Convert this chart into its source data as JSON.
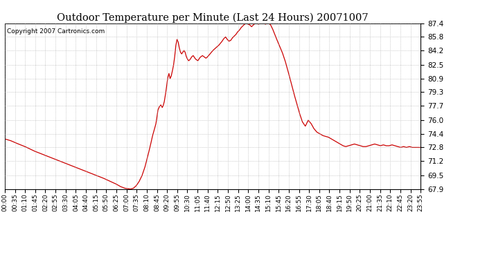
{
  "title": "Outdoor Temperature per Minute (Last 24 Hours) 20071007",
  "copyright": "Copyright 2007 Cartronics.com",
  "line_color": "#cc0000",
  "background_color": "#ffffff",
  "grid_color": "#aaaaaa",
  "ylim": [
    67.9,
    87.4
  ],
  "yticks": [
    67.9,
    69.5,
    71.2,
    72.8,
    74.4,
    76.0,
    77.7,
    79.3,
    80.9,
    82.5,
    84.2,
    85.8,
    87.4
  ],
  "xtick_labels": [
    "00:00",
    "00:35",
    "01:10",
    "01:45",
    "02:20",
    "02:55",
    "03:30",
    "04:05",
    "04:40",
    "05:15",
    "05:50",
    "06:25",
    "07:00",
    "07:35",
    "08:10",
    "08:45",
    "09:20",
    "09:55",
    "10:30",
    "11:05",
    "11:40",
    "12:15",
    "12:50",
    "13:25",
    "14:00",
    "14:35",
    "15:10",
    "15:45",
    "16:20",
    "16:55",
    "17:30",
    "18:05",
    "18:40",
    "19:15",
    "19:50",
    "20:25",
    "21:00",
    "21:35",
    "22:10",
    "22:45",
    "23:20",
    "23:55"
  ],
  "keypoints": [
    [
      0,
      73.8
    ],
    [
      20,
      73.6
    ],
    [
      40,
      73.3
    ],
    [
      70,
      72.9
    ],
    [
      100,
      72.4
    ],
    [
      130,
      72.0
    ],
    [
      160,
      71.6
    ],
    [
      190,
      71.2
    ],
    [
      220,
      70.8
    ],
    [
      250,
      70.4
    ],
    [
      280,
      70.0
    ],
    [
      310,
      69.6
    ],
    [
      340,
      69.2
    ],
    [
      365,
      68.8
    ],
    [
      385,
      68.5
    ],
    [
      400,
      68.2
    ],
    [
      415,
      68.0
    ],
    [
      425,
      67.95
    ],
    [
      435,
      67.9
    ],
    [
      445,
      68.0
    ],
    [
      455,
      68.3
    ],
    [
      465,
      68.8
    ],
    [
      475,
      69.5
    ],
    [
      485,
      70.5
    ],
    [
      495,
      71.8
    ],
    [
      505,
      73.2
    ],
    [
      510,
      74.0
    ],
    [
      515,
      74.6
    ],
    [
      520,
      75.2
    ],
    [
      523,
      75.6
    ],
    [
      525,
      76.0
    ],
    [
      527,
      76.5
    ],
    [
      530,
      77.2
    ],
    [
      535,
      77.6
    ],
    [
      540,
      77.8
    ],
    [
      545,
      77.5
    ],
    [
      548,
      77.7
    ],
    [
      552,
      78.2
    ],
    [
      556,
      79.0
    ],
    [
      560,
      80.0
    ],
    [
      564,
      81.0
    ],
    [
      568,
      81.5
    ],
    [
      572,
      80.9
    ],
    [
      576,
      81.2
    ],
    [
      580,
      81.8
    ],
    [
      584,
      82.5
    ],
    [
      588,
      83.5
    ],
    [
      592,
      84.8
    ],
    [
      596,
      85.5
    ],
    [
      600,
      85.2
    ],
    [
      604,
      84.5
    ],
    [
      608,
      84.0
    ],
    [
      612,
      83.8
    ],
    [
      616,
      84.0
    ],
    [
      620,
      84.2
    ],
    [
      624,
      84.0
    ],
    [
      628,
      83.5
    ],
    [
      632,
      83.2
    ],
    [
      636,
      83.0
    ],
    [
      640,
      83.1
    ],
    [
      644,
      83.3
    ],
    [
      648,
      83.5
    ],
    [
      652,
      83.6
    ],
    [
      656,
      83.4
    ],
    [
      660,
      83.2
    ],
    [
      664,
      83.1
    ],
    [
      668,
      83.0
    ],
    [
      672,
      83.2
    ],
    [
      676,
      83.4
    ],
    [
      680,
      83.5
    ],
    [
      684,
      83.6
    ],
    [
      688,
      83.5
    ],
    [
      692,
      83.4
    ],
    [
      696,
      83.3
    ],
    [
      700,
      83.4
    ],
    [
      705,
      83.6
    ],
    [
      710,
      83.8
    ],
    [
      715,
      84.0
    ],
    [
      720,
      84.2
    ],
    [
      730,
      84.5
    ],
    [
      740,
      84.8
    ],
    [
      750,
      85.2
    ],
    [
      758,
      85.6
    ],
    [
      764,
      85.8
    ],
    [
      770,
      85.5
    ],
    [
      776,
      85.3
    ],
    [
      782,
      85.4
    ],
    [
      788,
      85.7
    ],
    [
      794,
      85.9
    ],
    [
      800,
      86.1
    ],
    [
      806,
      86.4
    ],
    [
      812,
      86.6
    ],
    [
      818,
      86.9
    ],
    [
      824,
      87.1
    ],
    [
      830,
      87.3
    ],
    [
      836,
      87.4
    ],
    [
      842,
      87.3
    ],
    [
      848,
      87.2
    ],
    [
      854,
      87.0
    ],
    [
      860,
      87.2
    ],
    [
      866,
      87.4
    ],
    [
      872,
      87.4
    ],
    [
      878,
      87.3
    ],
    [
      884,
      87.4
    ],
    [
      890,
      87.4
    ],
    [
      896,
      87.4
    ],
    [
      902,
      87.3
    ],
    [
      908,
      87.4
    ],
    [
      914,
      87.4
    ],
    [
      920,
      87.2
    ],
    [
      926,
      86.8
    ],
    [
      932,
      86.3
    ],
    [
      940,
      85.6
    ],
    [
      950,
      84.8
    ],
    [
      960,
      84.0
    ],
    [
      970,
      83.0
    ],
    [
      980,
      81.8
    ],
    [
      990,
      80.5
    ],
    [
      1000,
      79.2
    ],
    [
      1010,
      78.0
    ],
    [
      1020,
      76.8
    ],
    [
      1030,
      75.8
    ],
    [
      1040,
      75.3
    ],
    [
      1050,
      76.0
    ],
    [
      1060,
      75.6
    ],
    [
      1070,
      75.0
    ],
    [
      1080,
      74.6
    ],
    [
      1090,
      74.4
    ],
    [
      1100,
      74.2
    ],
    [
      1110,
      74.1
    ],
    [
      1120,
      74.0
    ],
    [
      1130,
      73.8
    ],
    [
      1140,
      73.6
    ],
    [
      1150,
      73.4
    ],
    [
      1160,
      73.2
    ],
    [
      1170,
      73.0
    ],
    [
      1180,
      72.9
    ],
    [
      1190,
      73.0
    ],
    [
      1200,
      73.1
    ],
    [
      1210,
      73.2
    ],
    [
      1220,
      73.1
    ],
    [
      1230,
      73.0
    ],
    [
      1240,
      72.9
    ],
    [
      1250,
      72.9
    ],
    [
      1260,
      73.0
    ],
    [
      1270,
      73.1
    ],
    [
      1280,
      73.2
    ],
    [
      1290,
      73.1
    ],
    [
      1300,
      73.0
    ],
    [
      1310,
      73.1
    ],
    [
      1320,
      73.0
    ],
    [
      1330,
      73.0
    ],
    [
      1340,
      73.1
    ],
    [
      1350,
      73.0
    ],
    [
      1360,
      72.9
    ],
    [
      1370,
      72.8
    ],
    [
      1380,
      72.9
    ],
    [
      1390,
      72.8
    ],
    [
      1400,
      72.9
    ],
    [
      1410,
      72.8
    ],
    [
      1420,
      72.8
    ],
    [
      1430,
      72.8
    ],
    [
      1439,
      72.8
    ]
  ]
}
